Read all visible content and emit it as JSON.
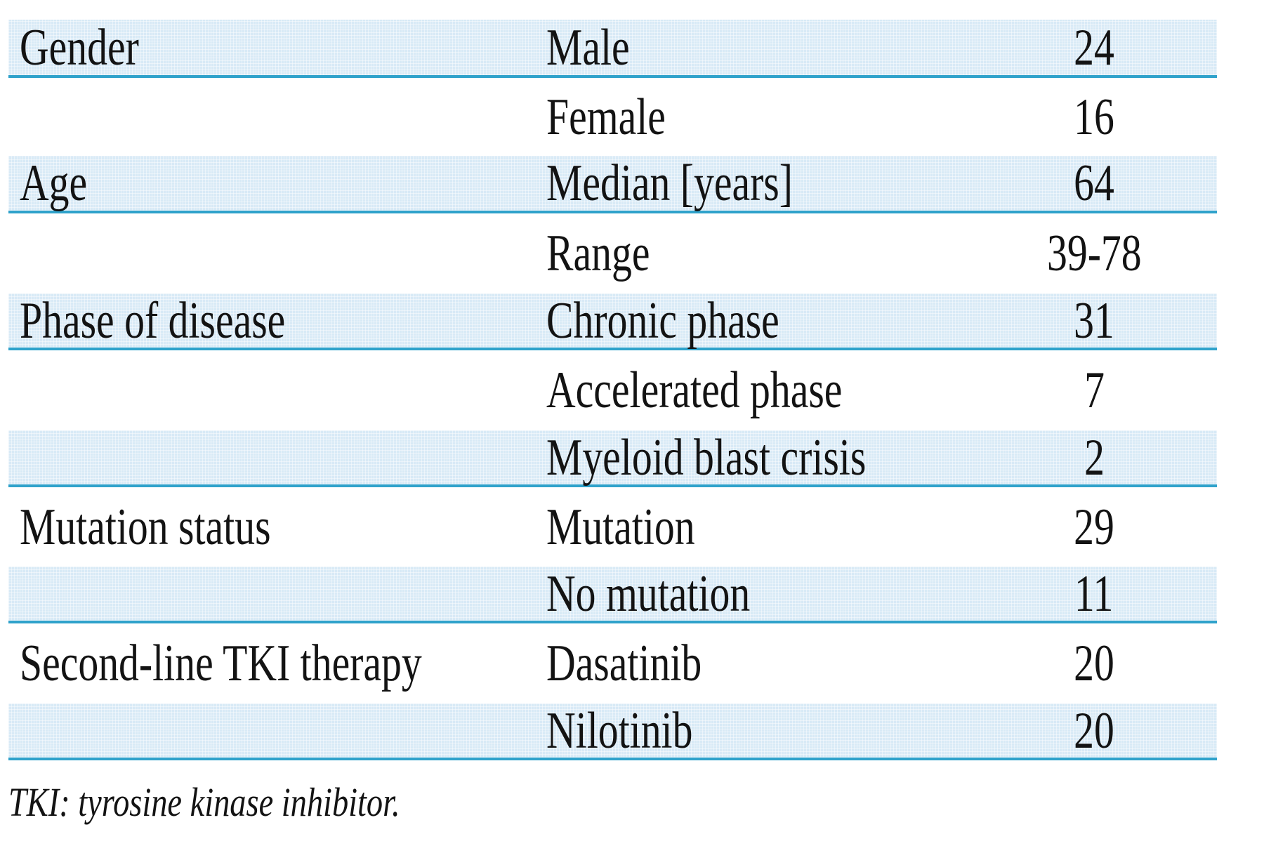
{
  "table": {
    "rows": [
      {
        "category": "Gender",
        "label": "Male",
        "value": "24"
      },
      {
        "category": "",
        "label": "Female",
        "value": "16"
      },
      {
        "category": "Age",
        "label": "Median [years]",
        "value": "64"
      },
      {
        "category": "",
        "label": "Range",
        "value": "39-78"
      },
      {
        "category": "Phase of disease",
        "label": "Chronic phase",
        "value": "31"
      },
      {
        "category": "",
        "label": "Accelerated phase",
        "value": "7"
      },
      {
        "category": "",
        "label": "Myeloid blast crisis",
        "value": "2"
      },
      {
        "category": "Mutation status",
        "label": "Mutation",
        "value": "29"
      },
      {
        "category": "",
        "label": "No mutation",
        "value": "11"
      },
      {
        "category": "Second-line TKI therapy",
        "label": "Dasatinib",
        "value": "20"
      },
      {
        "category": "",
        "label": "Nilotinib",
        "value": "20"
      }
    ],
    "footnote": "TKI: tyrosine kinase inhibitor.",
    "colors": {
      "row_shade": "#d8eaf6",
      "rule": "#2fa2cb",
      "text": "#131313"
    }
  },
  "chart_data": {
    "type": "table",
    "rows": [
      [
        "Gender",
        "Male",
        "24"
      ],
      [
        "",
        "Female",
        "16"
      ],
      [
        "Age",
        "Median [years]",
        "64"
      ],
      [
        "",
        "Range",
        "39-78"
      ],
      [
        "Phase of disease",
        "Chronic phase",
        "31"
      ],
      [
        "",
        "Accelerated phase",
        "7"
      ],
      [
        "",
        "Myeloid blast crisis",
        "2"
      ],
      [
        "Mutation status",
        "Mutation",
        "29"
      ],
      [
        "",
        "No mutation",
        "11"
      ],
      [
        "Second-line TKI therapy",
        "Dasatinib",
        "20"
      ],
      [
        "",
        "Nilotinib",
        "20"
      ]
    ],
    "footnote": "TKI: tyrosine kinase inhibitor."
  }
}
